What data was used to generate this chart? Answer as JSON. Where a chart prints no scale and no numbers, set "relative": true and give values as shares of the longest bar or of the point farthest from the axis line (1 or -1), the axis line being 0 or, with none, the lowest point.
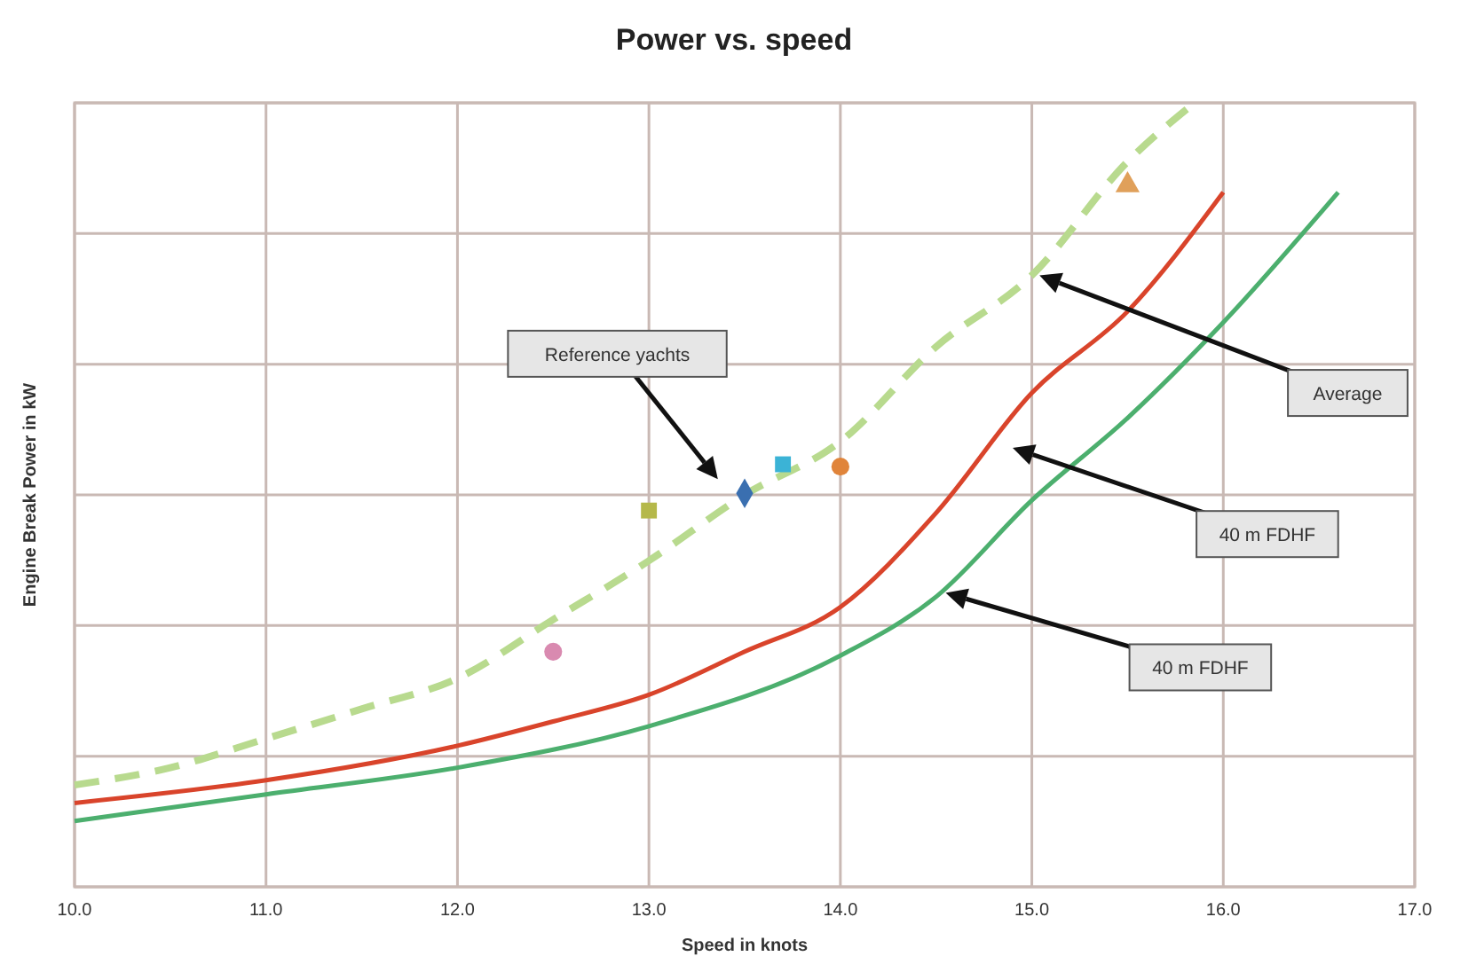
{
  "chart_data": {
    "type": "line",
    "title": "Power vs. speed",
    "xlabel": "Speed in knots",
    "ylabel": "Engine Break Power in kW",
    "relative": true,
    "grid": true,
    "xlim": [
      10,
      17
    ],
    "xticks": [
      {
        "value": 10,
        "label": "10.0"
      },
      {
        "value": 11,
        "label": "11.0"
      },
      {
        "value": 12,
        "label": "12.0"
      },
      {
        "value": 13,
        "label": "13.0"
      },
      {
        "value": 14,
        "label": "14.0"
      },
      {
        "value": 15,
        "label": "15.0"
      },
      {
        "value": 16,
        "label": "16.0"
      },
      {
        "value": 17,
        "label": "17.0"
      }
    ],
    "series": [
      {
        "color": "#b8da8e",
        "line_style": "dashed",
        "x": [
          10,
          10.5,
          11,
          11.5,
          12,
          12.5,
          13,
          13.5,
          14,
          14.5,
          15,
          15.5,
          15.85
        ],
        "values": [
          0.13,
          0.152,
          0.189,
          0.227,
          0.266,
          0.341,
          0.416,
          0.5,
          0.568,
          0.689,
          0.78,
          0.925,
          1.0
        ]
      },
      {
        "color": "#d9442b",
        "line_style": "solid",
        "x": [
          10,
          11,
          12,
          12.5,
          13,
          13.5,
          14,
          14.5,
          15,
          15.5,
          16
        ],
        "values": [
          0.107,
          0.136,
          0.18,
          0.211,
          0.245,
          0.3,
          0.357,
          0.477,
          0.63,
          0.734,
          0.886
        ]
      },
      {
        "color": "#4caf6e",
        "line_style": "solid",
        "x": [
          10,
          11,
          12,
          13,
          14,
          14.5,
          15,
          15.5,
          16,
          16.6
        ],
        "values": [
          0.084,
          0.118,
          0.152,
          0.205,
          0.295,
          0.37,
          0.493,
          0.598,
          0.72,
          0.886
        ]
      },
      {
        "type": "scatter",
        "color": "#3a6fb0",
        "marker": "diamond",
        "x": [
          13.5
        ],
        "values": [
          0.502
        ]
      },
      {
        "type": "scatter",
        "color": "#3bb3d6",
        "marker": "square",
        "x": [
          13.7
        ],
        "values": [
          0.539
        ]
      },
      {
        "type": "scatter",
        "color": "#e0843a",
        "marker": "circle",
        "x": [
          14.0
        ],
        "values": [
          0.536
        ]
      },
      {
        "type": "scatter",
        "color": "#e0a05a",
        "marker": "triangle",
        "x": [
          15.5
        ],
        "values": [
          0.895
        ]
      },
      {
        "type": "scatter",
        "color": "#b5b84a",
        "marker": "square",
        "x": [
          13.0
        ],
        "values": [
          0.48
        ]
      },
      {
        "type": "scatter",
        "color": "#d98ab0",
        "marker": "circle",
        "x": [
          12.5
        ],
        "values": [
          0.3
        ]
      }
    ],
    "annotations": [
      "Reference yachts",
      "Average",
      "40 m FDHF",
      "40 m FDHF"
    ]
  }
}
